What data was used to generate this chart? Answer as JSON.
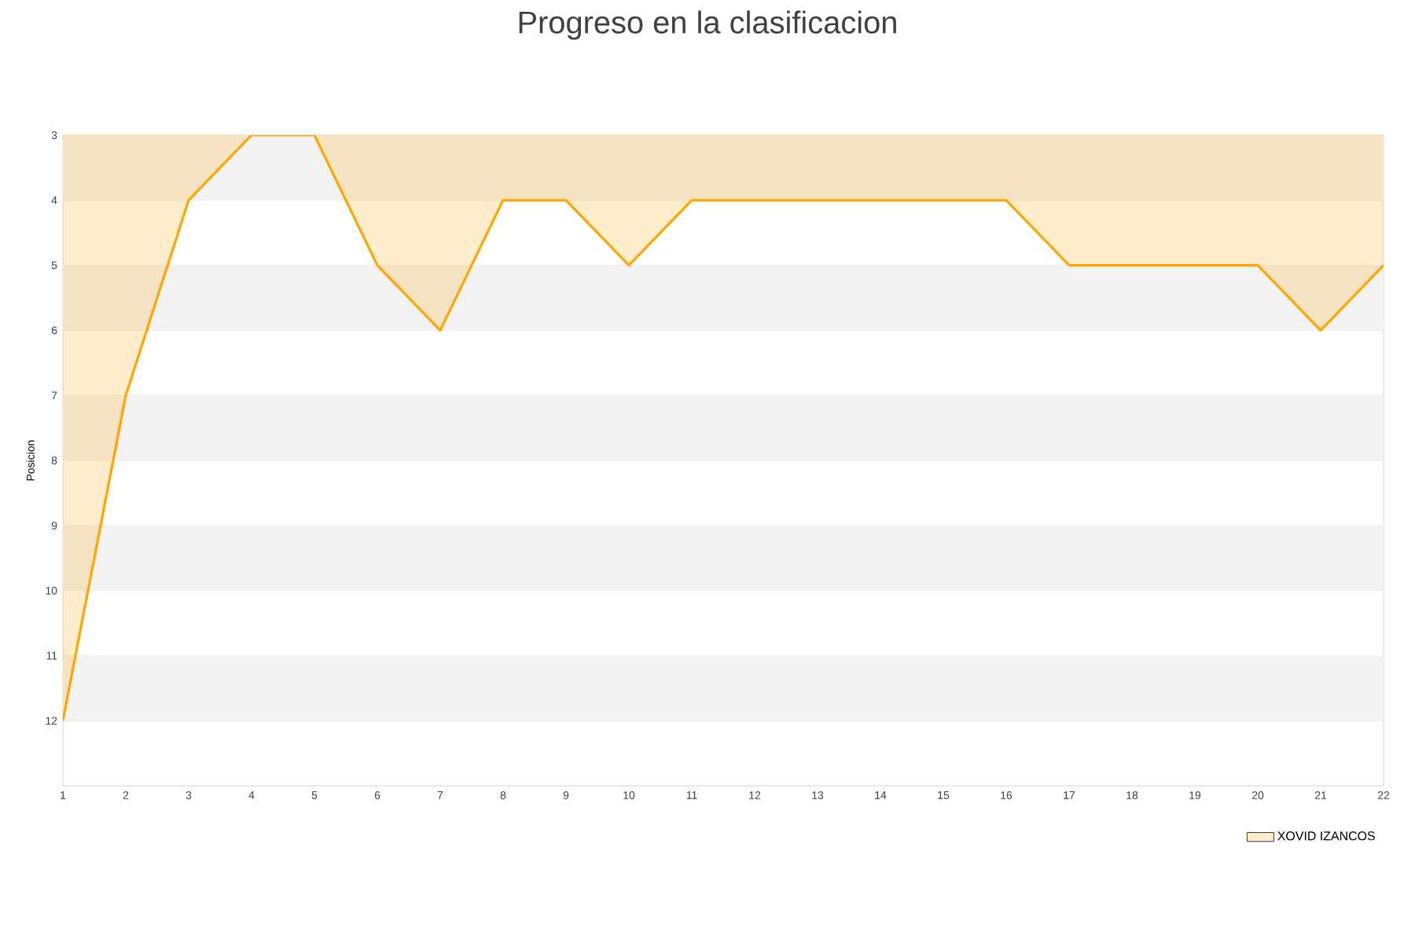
{
  "chart_data": {
    "type": "area",
    "title": "Progreso en la clasificacion",
    "ylabel": "Posicion",
    "x": [
      1,
      2,
      3,
      4,
      5,
      6,
      7,
      8,
      9,
      10,
      11,
      12,
      13,
      14,
      15,
      16,
      17,
      18,
      19,
      20,
      21,
      22
    ],
    "series": [
      {
        "name": "XOVID IZANCOS",
        "color": "#ffa500",
        "values": [
          12,
          7,
          4,
          3,
          3,
          5,
          6,
          4,
          4,
          5,
          4,
          4,
          4,
          4,
          4,
          4,
          5,
          5,
          5,
          5,
          6,
          5
        ]
      }
    ],
    "xlim": [
      1,
      22
    ],
    "xticks": [
      1,
      2,
      3,
      4,
      5,
      6,
      7,
      8,
      9,
      10,
      11,
      12,
      13,
      14,
      15,
      16,
      17,
      18,
      19,
      20,
      21,
      22
    ],
    "ylim": [
      13,
      3
    ],
    "yticks": [
      3,
      4,
      5,
      6,
      7,
      8,
      9,
      10,
      11,
      12
    ],
    "bands": [
      {
        "axis": "y",
        "from": 3,
        "to": 4,
        "color": "#f2f2f2"
      },
      {
        "axis": "y",
        "from": 5,
        "to": 6,
        "color": "#f2f2f2"
      },
      {
        "axis": "y",
        "from": 7,
        "to": 8,
        "color": "#f2f2f2"
      },
      {
        "axis": "y",
        "from": 9,
        "to": 10,
        "color": "#f2f2f2"
      },
      {
        "axis": "y",
        "from": 11,
        "to": 12,
        "color": "#f2f2f2"
      }
    ],
    "grid": "y",
    "legend": "bottom right",
    "marker": "none",
    "line_style": "solid"
  }
}
